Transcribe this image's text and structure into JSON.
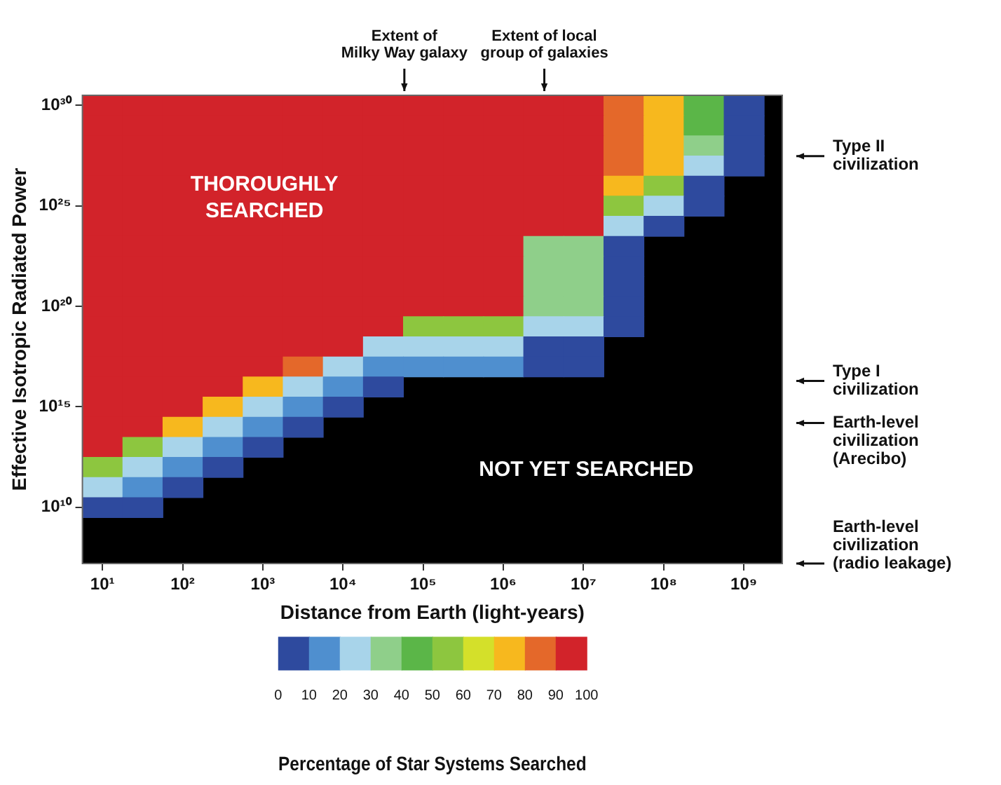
{
  "chart_data": {
    "type": "heatmap",
    "xlabel": "Distance from Earth (light-years)",
    "ylabel": "Effective Isotropic Radiated Power",
    "clabel": "Percentage of Star Systems Searched",
    "clim": [
      0,
      100
    ],
    "cticks": [
      0,
      10,
      20,
      30,
      40,
      50,
      60,
      70,
      80,
      90,
      100
    ],
    "colors": [
      "#2e4a9e",
      "#4f8fcf",
      "#a8d4ea",
      "#8fcf8a",
      "#5bb648",
      "#8dc63f",
      "#d4e02a",
      "#f7b81e",
      "#e4682a",
      "#d2232a"
    ],
    "categories": [
      "10¹",
      null,
      "10²",
      null,
      "10³",
      null,
      "10⁴",
      null,
      "10⁵",
      null,
      "10⁶",
      null,
      "10⁷",
      null,
      "10⁸",
      null,
      "10⁹"
    ],
    "y_categories": [
      "10³⁰",
      null,
      null,
      null,
      null,
      "10²⁵",
      null,
      null,
      null,
      null,
      "10²⁰",
      null,
      null,
      null,
      null,
      "10¹⁵",
      null,
      null,
      null,
      null,
      "10¹⁰"
    ],
    "cells": [
      [
        95,
        95,
        95,
        95,
        95,
        95,
        95,
        95,
        95,
        95,
        95,
        95,
        95,
        85,
        75,
        45,
        5
      ],
      [
        95,
        95,
        95,
        95,
        95,
        95,
        95,
        95,
        95,
        95,
        95,
        95,
        95,
        85,
        75,
        45,
        5
      ],
      [
        95,
        95,
        95,
        95,
        95,
        95,
        95,
        95,
        95,
        95,
        95,
        95,
        95,
        85,
        75,
        35,
        5
      ],
      [
        95,
        95,
        95,
        95,
        95,
        95,
        95,
        95,
        95,
        95,
        95,
        95,
        95,
        85,
        75,
        25,
        5
      ],
      [
        95,
        95,
        95,
        95,
        95,
        95,
        95,
        95,
        95,
        95,
        95,
        95,
        95,
        75,
        55,
        5,
        null
      ],
      [
        95,
        95,
        95,
        95,
        95,
        95,
        95,
        95,
        95,
        95,
        95,
        95,
        95,
        55,
        25,
        5,
        null
      ],
      [
        95,
        95,
        95,
        95,
        95,
        95,
        95,
        95,
        95,
        95,
        95,
        95,
        95,
        25,
        5,
        null,
        null
      ],
      [
        95,
        95,
        95,
        95,
        95,
        95,
        95,
        95,
        95,
        95,
        95,
        35,
        35,
        5,
        null,
        null,
        null
      ],
      [
        95,
        95,
        95,
        95,
        95,
        95,
        95,
        95,
        95,
        95,
        95,
        35,
        35,
        5,
        null,
        null,
        null
      ],
      [
        95,
        95,
        95,
        95,
        95,
        95,
        95,
        95,
        95,
        95,
        95,
        35,
        35,
        5,
        null,
        null,
        null
      ],
      [
        95,
        95,
        95,
        95,
        95,
        95,
        95,
        95,
        95,
        95,
        95,
        35,
        35,
        5,
        null,
        null,
        null
      ],
      [
        95,
        95,
        95,
        95,
        95,
        95,
        95,
        95,
        55,
        55,
        55,
        25,
        25,
        5,
        null,
        null,
        null
      ],
      [
        95,
        95,
        95,
        95,
        95,
        95,
        95,
        25,
        25,
        25,
        25,
        5,
        5,
        null,
        null,
        null,
        null
      ],
      [
        95,
        95,
        95,
        95,
        95,
        85,
        25,
        15,
        15,
        15,
        15,
        5,
        5,
        null,
        null,
        null,
        null
      ],
      [
        95,
        95,
        95,
        95,
        75,
        25,
        15,
        5,
        null,
        null,
        null,
        null,
        null,
        null,
        null,
        null,
        null
      ],
      [
        95,
        95,
        95,
        75,
        25,
        15,
        5,
        null,
        null,
        null,
        null,
        null,
        null,
        null,
        null,
        null,
        null
      ],
      [
        95,
        95,
        75,
        25,
        15,
        5,
        null,
        null,
        null,
        null,
        null,
        null,
        null,
        null,
        null,
        null,
        null
      ],
      [
        95,
        55,
        25,
        15,
        5,
        null,
        null,
        null,
        null,
        null,
        null,
        null,
        null,
        null,
        null,
        null,
        null
      ],
      [
        55,
        25,
        15,
        5,
        null,
        null,
        null,
        null,
        null,
        null,
        null,
        null,
        null,
        null,
        null,
        null,
        null
      ],
      [
        25,
        15,
        5,
        null,
        null,
        null,
        null,
        null,
        null,
        null,
        null,
        null,
        null,
        null,
        null,
        null,
        null
      ],
      [
        5,
        5,
        null,
        null,
        null,
        null,
        null,
        null,
        null,
        null,
        null,
        null,
        null,
        null,
        null,
        null,
        null
      ]
    ],
    "annotations": [
      "Extent of\nMilky Way galaxy",
      "Extent of local\ngroup of galaxies",
      "Type II\ncivilization",
      "Type I\ncivilization",
      "Earth-level\ncivilization\n(Arecibo)",
      "Earth-level\ncivilization\n(radio leakage)",
      "THOROUGHLY\nSEARCHED",
      "NOT YET SEARCHED"
    ]
  }
}
